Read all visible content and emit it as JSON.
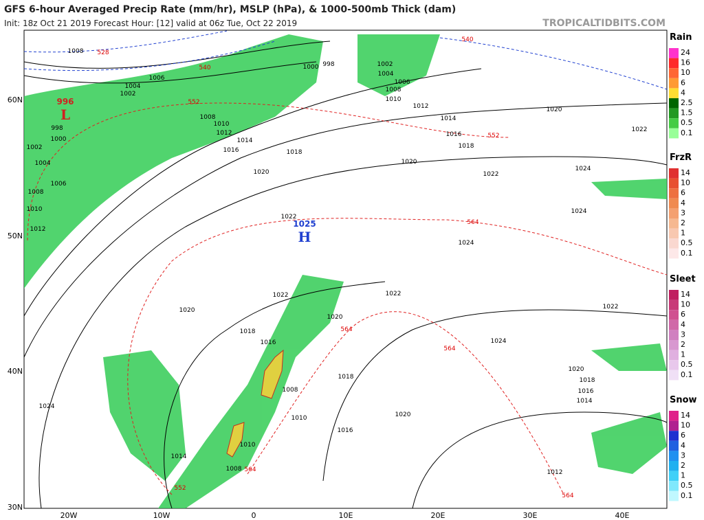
{
  "header": {
    "title": "GFS 6-hour Averaged Precip Rate (mm/hr), MSLP (hPa), & 1000-500mb Thick (dam)",
    "subtitle": "Init: 18z Oct 21 2019   Forecast Hour: [12]   valid at 06z Tue, Oct 22 2019",
    "source": "TROPICALTIDBITS.COM"
  },
  "map": {
    "lat_labels": [
      "60N",
      "50N",
      "40N",
      "30N"
    ],
    "lon_labels": [
      "20W",
      "10W",
      "0",
      "10E",
      "20E",
      "30E",
      "40E"
    ],
    "pressure_centers": [
      {
        "label": "996",
        "symbol": "L"
      },
      {
        "label": "1025",
        "symbol": "H"
      }
    ],
    "isobar_labels": [
      "1008",
      "1006",
      "1004",
      "1002",
      "1000",
      "998",
      "1002",
      "1004",
      "1006",
      "1008",
      "1010",
      "1012",
      "1008",
      "1010",
      "1012",
      "1014",
      "1016",
      "1018",
      "1020",
      "1022",
      "1022",
      "1020",
      "1018",
      "1016",
      "1020",
      "1018",
      "1008",
      "1010",
      "1016",
      "1020",
      "1014",
      "1010",
      "1008",
      "1024",
      "1020",
      "1022",
      "1024",
      "1024",
      "1024",
      "1022",
      "1022",
      "1024",
      "1020",
      "1018",
      "1016",
      "1014",
      "1012",
      "1020",
      "1022",
      "1014",
      "1016",
      "1018",
      "1012",
      "1010",
      "1008",
      "1006",
      "1004",
      "1002",
      "998",
      "1000"
    ],
    "thickness_labels": [
      "528",
      "540",
      "540",
      "552",
      "552",
      "552",
      "564",
      "564",
      "564",
      "564",
      "564"
    ]
  },
  "legends": [
    {
      "title": "Rain",
      "labels": [
        "24",
        "16",
        "10",
        "6",
        "4",
        "2.5",
        "1.5",
        "0.5",
        "0.1"
      ]
    },
    {
      "title": "FrzR",
      "labels": [
        "14",
        "10",
        "6",
        "4",
        "3",
        "2",
        "1",
        "0.5",
        "0.1"
      ]
    },
    {
      "title": "Sleet",
      "labels": [
        "14",
        "10",
        "6",
        "4",
        "3",
        "2",
        "1",
        "0.5",
        "0.1"
      ]
    },
    {
      "title": "Snow",
      "labels": [
        "14",
        "10",
        "6",
        "4",
        "3",
        "2",
        "1",
        "0.5",
        "0.1"
      ]
    }
  ]
}
